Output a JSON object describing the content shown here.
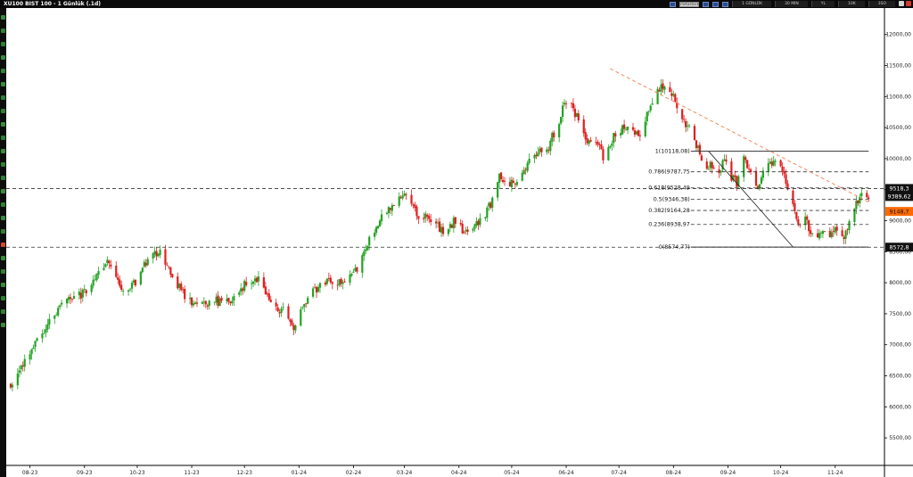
{
  "window": {
    "title": "XU100 BIST 100 - 1 Günlük (.1d)",
    "toolbar_input": "metastock",
    "toolbar_tabs": [
      "1 GÜNLÜK",
      "30 MIN",
      "YL",
      "10K",
      "3SO"
    ]
  },
  "colors": {
    "up": "#23a323",
    "down": "#e01e1e",
    "tag_dark": "#111111",
    "tag_orange": "#ff6a00",
    "trend_dashed": "#f08a5d"
  },
  "chart_data": {
    "type": "candlestick",
    "title": "XU100 BIST 100 - 1 Günlük (.1d)",
    "y_axis": {
      "position": "right",
      "range": [
        5100,
        12400
      ],
      "ticks": [
        5500,
        6000,
        6500,
        7000,
        7500,
        8000,
        8500,
        9000,
        9500,
        10000,
        10500,
        11000,
        11500,
        12000
      ],
      "tick_labels": [
        "5500,00",
        "6000,00",
        "6500,00",
        "7000,00",
        "7500,00",
        "8000,00",
        "8500,00",
        "9000,00",
        "9500,00",
        "10000,00",
        "10500,00",
        "11000,00",
        "11500,00",
        "12000,00"
      ]
    },
    "x_axis": {
      "labels": [
        "08-23",
        "09-23",
        "10-23",
        "11-23",
        "12-23",
        "01-24",
        "02-24",
        "03-24",
        "04-24",
        "05-24",
        "06-24",
        "07-24",
        "08-24",
        "09-24",
        "10-24",
        "11-24"
      ]
    },
    "trend_path": [
      {
        "date": "2023-08-03",
        "price": 6380
      },
      {
        "date": "2023-08-15",
        "price": 6900
      },
      {
        "date": "2023-08-25",
        "price": 7400
      },
      {
        "date": "2023-09-05",
        "price": 7750
      },
      {
        "date": "2023-09-15",
        "price": 7850
      },
      {
        "date": "2023-09-27",
        "price": 8350
      },
      {
        "date": "2023-10-06",
        "price": 7800
      },
      {
        "date": "2023-10-13",
        "price": 8000
      },
      {
        "date": "2023-10-20",
        "price": 8400
      },
      {
        "date": "2023-10-27",
        "price": 8500
      },
      {
        "date": "2023-11-03",
        "price": 8100
      },
      {
        "date": "2023-11-10",
        "price": 7800
      },
      {
        "date": "2023-11-17",
        "price": 7600
      },
      {
        "date": "2023-11-28",
        "price": 7700
      },
      {
        "date": "2023-12-07",
        "price": 7700
      },
      {
        "date": "2023-12-15",
        "price": 8000
      },
      {
        "date": "2023-12-22",
        "price": 8050
      },
      {
        "date": "2023-12-29",
        "price": 7650
      },
      {
        "date": "2024-01-05",
        "price": 7550
      },
      {
        "date": "2024-01-10",
        "price": 7250
      },
      {
        "date": "2024-01-18",
        "price": 7700
      },
      {
        "date": "2024-01-25",
        "price": 7950
      },
      {
        "date": "2024-02-02",
        "price": 8050
      },
      {
        "date": "2024-02-09",
        "price": 7950
      },
      {
        "date": "2024-02-16",
        "price": 8250
      },
      {
        "date": "2024-02-23",
        "price": 8700
      },
      {
        "date": "2024-03-01",
        "price": 9100
      },
      {
        "date": "2024-03-08",
        "price": 9300
      },
      {
        "date": "2024-03-15",
        "price": 9400
      },
      {
        "date": "2024-03-22",
        "price": 9100
      },
      {
        "date": "2024-03-29",
        "price": 9000
      },
      {
        "date": "2024-04-05",
        "price": 8850
      },
      {
        "date": "2024-04-12",
        "price": 9000
      },
      {
        "date": "2024-04-19",
        "price": 8750
      },
      {
        "date": "2024-04-26",
        "price": 9000
      },
      {
        "date": "2024-05-03",
        "price": 9300
      },
      {
        "date": "2024-05-07",
        "price": 9700
      },
      {
        "date": "2024-05-14",
        "price": 9600
      },
      {
        "date": "2024-05-21",
        "price": 9800
      },
      {
        "date": "2024-05-28",
        "price": 10100
      },
      {
        "date": "2024-06-04",
        "price": 10200
      },
      {
        "date": "2024-06-11",
        "price": 10700
      },
      {
        "date": "2024-06-14",
        "price": 10950
      },
      {
        "date": "2024-06-20",
        "price": 10700
      },
      {
        "date": "2024-06-26",
        "price": 10300
      },
      {
        "date": "2024-07-02",
        "price": 10250
      },
      {
        "date": "2024-07-05",
        "price": 10000
      },
      {
        "date": "2024-07-12",
        "price": 10400
      },
      {
        "date": "2024-07-19",
        "price": 10550
      },
      {
        "date": "2024-07-26",
        "price": 10300
      },
      {
        "date": "2024-08-01",
        "price": 10900
      },
      {
        "date": "2024-08-06",
        "price": 11100
      },
      {
        "date": "2024-08-09",
        "price": 11200
      },
      {
        "date": "2024-08-14",
        "price": 11000
      },
      {
        "date": "2024-08-19",
        "price": 10650
      },
      {
        "date": "2024-08-23",
        "price": 10500
      },
      {
        "date": "2024-08-27",
        "price": 10200
      },
      {
        "date": "2024-09-02",
        "price": 9850
      },
      {
        "date": "2024-09-05",
        "price": 9900
      },
      {
        "date": "2024-09-09",
        "price": 9800
      },
      {
        "date": "2024-09-12",
        "price": 9950
      },
      {
        "date": "2024-09-16",
        "price": 9700
      },
      {
        "date": "2024-09-19",
        "price": 9600
      },
      {
        "date": "2024-09-23",
        "price": 10050
      },
      {
        "date": "2024-09-27",
        "price": 9750
      },
      {
        "date": "2024-10-01",
        "price": 9500
      },
      {
        "date": "2024-10-04",
        "price": 9750
      },
      {
        "date": "2024-10-09",
        "price": 9950
      },
      {
        "date": "2024-10-14",
        "price": 9900
      },
      {
        "date": "2024-10-17",
        "price": 9600
      },
      {
        "date": "2024-10-21",
        "price": 9200
      },
      {
        "date": "2024-10-24",
        "price": 8950
      },
      {
        "date": "2024-10-28",
        "price": 9050
      },
      {
        "date": "2024-11-01",
        "price": 8750
      },
      {
        "date": "2024-11-06",
        "price": 8800
      },
      {
        "date": "2024-11-11",
        "price": 8750
      },
      {
        "date": "2024-11-15",
        "price": 8900
      },
      {
        "date": "2024-11-19",
        "price": 8650
      },
      {
        "date": "2024-11-22",
        "price": 9050
      },
      {
        "date": "2024-11-26",
        "price": 9300
      },
      {
        "date": "2024-11-29",
        "price": 9450
      },
      {
        "date": "2024-12-03",
        "price": 9400
      }
    ],
    "fibonacci": {
      "levels": [
        {
          "ratio": 1,
          "price": 10118.08,
          "label": "1(10118,08)"
        },
        {
          "ratio": 0.786,
          "price": 9787.75,
          "label": "0.786(9787,75"
        },
        {
          "ratio": 0.618,
          "price": 9528.49,
          "label": "0.618(9528,49"
        },
        {
          "ratio": 0.5,
          "price": 9346.38,
          "label": "0.5(9346,38)"
        },
        {
          "ratio": 0.382,
          "price": 9164.28,
          "label": "0.382(9164,28"
        },
        {
          "ratio": 0.236,
          "price": 8938.97,
          "label": "0.236(8938,97"
        },
        {
          "ratio": 0,
          "price": 8574.77,
          "label": "0(8574,77)"
        }
      ],
      "swing_high": {
        "date": "2024-09-03",
        "price": 10118.08
      },
      "swing_low": {
        "date": "2024-10-21",
        "price": 8574.77
      },
      "extends_to": "2024-12-03"
    },
    "horizontal_lines": [
      {
        "price": 9518.3
      },
      {
        "price": 8572.8
      }
    ],
    "trendline": {
      "start": {
        "date": "2024-07-09",
        "price": 11450
      },
      "end": {
        "date": "2024-12-03",
        "price": 9300
      }
    },
    "price_tags": [
      {
        "label": "9518,3",
        "price": 9518.3,
        "style": "dark"
      },
      {
        "label": "9389,62",
        "price": 9389.62,
        "style": "dark"
      },
      {
        "label": "9148,7",
        "price": 9148.7,
        "style": "orange"
      },
      {
        "label": "8572,8",
        "price": 8572.8,
        "style": "dark"
      }
    ],
    "grid": false,
    "legend": "none"
  }
}
